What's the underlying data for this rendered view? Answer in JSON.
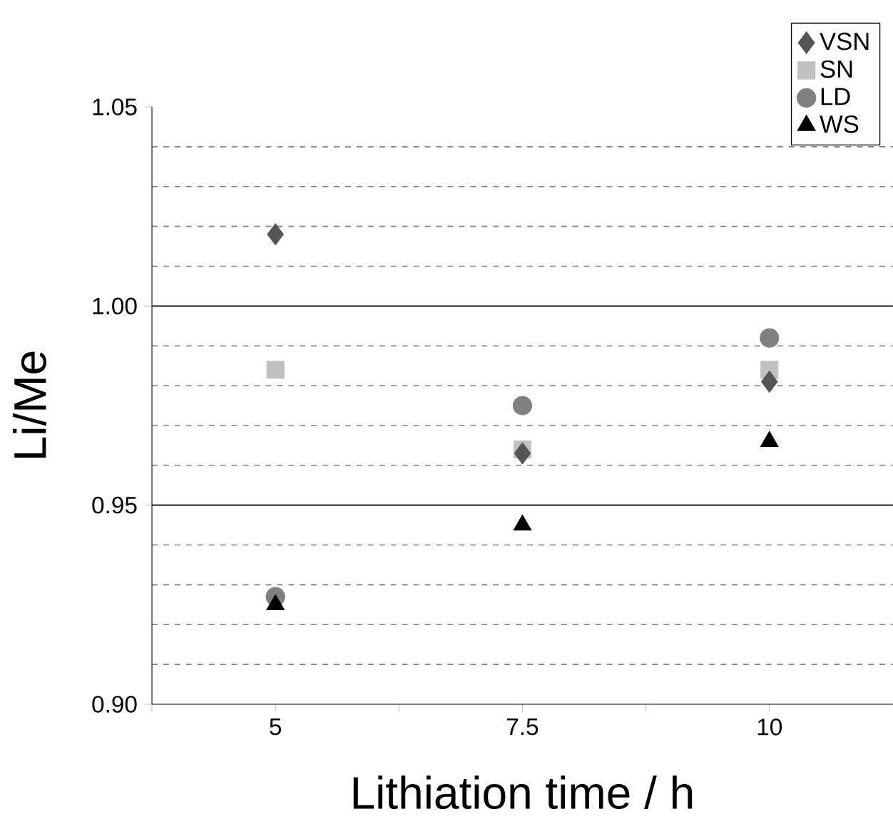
{
  "chart_data": {
    "type": "scatter",
    "xlabel": "Lithiation time / h",
    "ylabel": "Li/Me",
    "xlim": [
      3.75,
      11.25
    ],
    "xticks": [
      {
        "value": 3.75,
        "label": null
      },
      5,
      {
        "value": 6.25,
        "label": null
      },
      7.5,
      {
        "value": 8.75,
        "label": null
      },
      10
    ],
    "ylim": [
      0.9,
      1.05
    ],
    "yticks": [
      {
        "value": 0.9,
        "label": "0.90"
      },
      {
        "value": 0.95,
        "label": "0.95"
      },
      {
        "value": 1.0,
        "label": "1.00"
      },
      {
        "value": 1.05,
        "label": "1.05"
      }
    ],
    "grid": "y",
    "legend": "top right",
    "series": [
      {
        "name": "VSN",
        "color": "#555555",
        "marker": "diamond",
        "x": [
          5,
          7.5,
          10
        ],
        "values": [
          1.018,
          0.963,
          0.981
        ]
      },
      {
        "name": "SN",
        "color": "#c0c0c0",
        "marker": "square",
        "x": [
          5,
          7.5,
          10
        ],
        "values": [
          0.984,
          0.964,
          0.984
        ]
      },
      {
        "name": "LD",
        "color": "#808080",
        "marker": "circle",
        "x": [
          5,
          7.5,
          10
        ],
        "values": [
          0.927,
          0.975,
          0.992
        ]
      },
      {
        "name": "WS",
        "color": "#000000",
        "marker": "triangle",
        "x": [
          5,
          7.5,
          10
        ],
        "values": [
          0.925,
          0.945,
          0.966
        ]
      }
    ]
  }
}
